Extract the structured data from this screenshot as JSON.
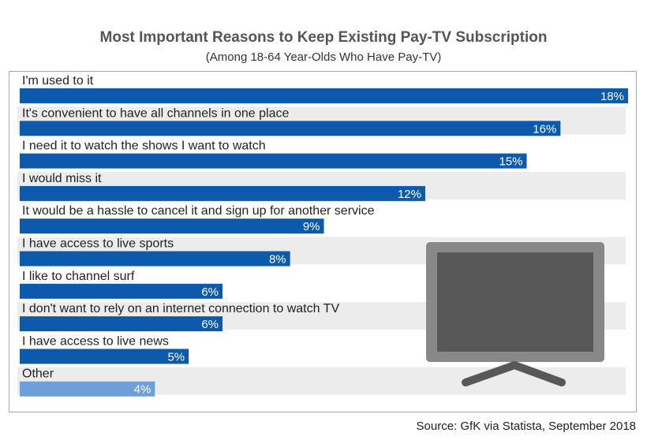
{
  "chart_data": {
    "type": "bar",
    "orientation": "horizontal",
    "title": "Most Important Reasons to Keep Existing Pay-TV Subscription",
    "subtitle": "(Among 18-64 Year-Olds Who Have Pay-TV)",
    "categories": [
      "I'm used to it",
      "It's convenient to have all channels in one place",
      "I need it to watch the shows I want to watch",
      "I would miss it",
      "It would be a hassle to cancel it and sign up for another service",
      "I have access to live sports",
      "I like to channel surf",
      "I don't want to rely on an internet connection to watch TV",
      "I have access to live news",
      "Other"
    ],
    "values": [
      18,
      16,
      15,
      12,
      9,
      8,
      6,
      6,
      5,
      4
    ],
    "value_labels": [
      "18%",
      "16%",
      "15%",
      "12%",
      "9%",
      "8%",
      "6%",
      "6%",
      "5%",
      "4%"
    ],
    "unit": "%",
    "xlim": [
      0,
      18
    ],
    "xlabel": "",
    "ylabel": "",
    "grid": false,
    "colors": {
      "bar": "#0d5aad",
      "bar_other": "#6f9fdb",
      "row_band": "#ececec",
      "tv_body": "#888888",
      "tv_screen": "#585858"
    }
  },
  "source": "Source:  GfK via Statista, September 2018"
}
